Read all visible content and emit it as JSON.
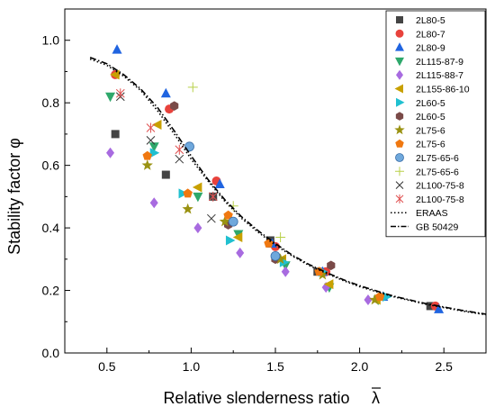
{
  "chart_data": {
    "type": "scatter",
    "xlabel": "Relative slenderness ratio",
    "xlabel_symbol": "λ",
    "ylabel": "Stability factor φ",
    "xlim": [
      0.25,
      2.75
    ],
    "ylim": [
      0.0,
      1.1
    ],
    "xticks": [
      0.5,
      1.0,
      1.5,
      2.0,
      2.5
    ],
    "xtick_labels": [
      "0.5",
      "1.0",
      "1.5",
      "2.0",
      "2.5"
    ],
    "yticks": [
      0.0,
      0.2,
      0.4,
      0.6,
      0.8,
      1.0
    ],
    "ytick_labels": [
      "0.0",
      "0.2",
      "0.4",
      "0.6",
      "0.8",
      "1.0"
    ],
    "grid": false,
    "legend_position": "top-right",
    "series": [
      {
        "name": "2L80-5",
        "marker": "square",
        "color": "#444444",
        "points": [
          [
            0.55,
            0.7
          ],
          [
            0.85,
            0.57
          ],
          [
            1.13,
            0.5
          ],
          [
            1.47,
            0.36
          ],
          [
            1.75,
            0.26
          ],
          [
            2.42,
            0.15
          ]
        ]
      },
      {
        "name": "2L80-7",
        "marker": "circle",
        "color": "#e8423c",
        "points": [
          [
            0.55,
            0.89
          ],
          [
            0.87,
            0.78
          ],
          [
            1.15,
            0.55
          ],
          [
            1.5,
            0.34
          ],
          [
            1.8,
            0.26
          ],
          [
            2.45,
            0.15
          ]
        ]
      },
      {
        "name": "2L80-9",
        "marker": "triangle-up",
        "color": "#2064e0",
        "points": [
          [
            0.56,
            0.97
          ],
          [
            0.85,
            0.83
          ],
          [
            1.17,
            0.54
          ],
          [
            1.48,
            0.35
          ],
          [
            1.78,
            0.26
          ],
          [
            2.14,
            0.18
          ],
          [
            2.47,
            0.14
          ]
        ]
      },
      {
        "name": "2L115-87-9",
        "marker": "triangle-down",
        "color": "#2ea86b",
        "points": [
          [
            0.52,
            0.82
          ],
          [
            0.78,
            0.66
          ],
          [
            1.04,
            0.5
          ],
          [
            1.28,
            0.38
          ],
          [
            1.56,
            0.28
          ],
          [
            1.82,
            0.21
          ],
          [
            2.11,
            0.17
          ]
        ]
      },
      {
        "name": "2L115-88-7",
        "marker": "diamond",
        "color": "#a86be0",
        "points": [
          [
            0.52,
            0.64
          ],
          [
            0.78,
            0.48
          ],
          [
            1.04,
            0.4
          ],
          [
            1.29,
            0.32
          ],
          [
            1.56,
            0.26
          ],
          [
            1.8,
            0.21
          ],
          [
            2.05,
            0.17
          ]
        ]
      },
      {
        "name": "2L155-86-10",
        "marker": "triangle-left",
        "color": "#c8a000",
        "points": [
          [
            0.55,
            0.89
          ],
          [
            0.8,
            0.73
          ],
          [
            1.04,
            0.53
          ],
          [
            1.28,
            0.37
          ],
          [
            1.54,
            0.3
          ],
          [
            1.82,
            0.22
          ],
          [
            2.1,
            0.17
          ]
        ]
      },
      {
        "name": "2L60-5",
        "marker": "triangle-right",
        "color": "#20c0d0",
        "points": [
          [
            0.78,
            0.64
          ],
          [
            0.95,
            0.51
          ],
          [
            1.23,
            0.36
          ],
          [
            1.55,
            0.29
          ],
          [
            1.78,
            0.26
          ],
          [
            2.16,
            0.18
          ]
        ]
      },
      {
        "name": "2L60-5",
        "marker": "hexagon",
        "color": "#7a4a48",
        "points": [
          [
            0.9,
            0.79
          ],
          [
            1.22,
            0.41
          ],
          [
            1.5,
            0.3
          ],
          [
            1.83,
            0.28
          ]
        ]
      },
      {
        "name": "2L75-6",
        "marker": "star",
        "color": "#9a9212",
        "points": [
          [
            0.74,
            0.6
          ],
          [
            0.98,
            0.46
          ],
          [
            1.2,
            0.42
          ],
          [
            1.53,
            0.3
          ],
          [
            1.78,
            0.25
          ],
          [
            2.09,
            0.17
          ]
        ]
      },
      {
        "name": "2L75-6",
        "marker": "pentagon",
        "color": "#f07810",
        "points": [
          [
            0.74,
            0.63
          ],
          [
            0.98,
            0.51
          ],
          [
            1.22,
            0.44
          ],
          [
            1.46,
            0.35
          ],
          [
            1.76,
            0.26
          ],
          [
            2.12,
            0.18
          ]
        ]
      },
      {
        "name": "2L75-65-6",
        "marker": "sphere",
        "color": "#6fa8dc",
        "points": [
          [
            0.99,
            0.66
          ],
          [
            1.25,
            0.42
          ],
          [
            1.5,
            0.31
          ]
        ]
      },
      {
        "name": "2L75-65-6",
        "marker": "plus",
        "color": "#b8d048",
        "points": [
          [
            1.01,
            0.85
          ],
          [
            1.25,
            0.47
          ],
          [
            1.53,
            0.37
          ]
        ]
      },
      {
        "name": "2L100-75-8",
        "marker": "x",
        "color": "#333333",
        "points": [
          [
            0.58,
            0.82
          ],
          [
            0.76,
            0.68
          ],
          [
            0.93,
            0.62
          ],
          [
            1.12,
            0.43
          ]
        ]
      },
      {
        "name": "2L100-75-8",
        "marker": "asterisk",
        "color": "#e05050",
        "points": [
          [
            0.58,
            0.83
          ],
          [
            0.76,
            0.72
          ],
          [
            0.93,
            0.65
          ],
          [
            1.13,
            0.5
          ]
        ]
      },
      {
        "name": "ERAAS",
        "line": "dotted",
        "color": "#000000",
        "points": [
          [
            0.4,
            0.94
          ],
          [
            0.5,
            0.92
          ],
          [
            0.6,
            0.885
          ],
          [
            0.7,
            0.84
          ],
          [
            0.8,
            0.775
          ],
          [
            0.9,
            0.7
          ],
          [
            1.0,
            0.62
          ],
          [
            1.1,
            0.55
          ],
          [
            1.2,
            0.485
          ],
          [
            1.3,
            0.43
          ],
          [
            1.4,
            0.385
          ],
          [
            1.5,
            0.345
          ],
          [
            1.6,
            0.31
          ],
          [
            1.7,
            0.28
          ],
          [
            1.8,
            0.255
          ],
          [
            1.9,
            0.232
          ],
          [
            2.0,
            0.212
          ],
          [
            2.2,
            0.18
          ],
          [
            2.4,
            0.155
          ],
          [
            2.6,
            0.135
          ],
          [
            2.75,
            0.122
          ]
        ]
      },
      {
        "name": "GB 50429",
        "line": "dashdot",
        "color": "#000000",
        "points": [
          [
            0.4,
            0.945
          ],
          [
            0.5,
            0.925
          ],
          [
            0.6,
            0.89
          ],
          [
            0.7,
            0.845
          ],
          [
            0.8,
            0.785
          ],
          [
            0.9,
            0.71
          ],
          [
            1.0,
            0.63
          ],
          [
            1.1,
            0.555
          ],
          [
            1.2,
            0.49
          ],
          [
            1.3,
            0.435
          ],
          [
            1.4,
            0.39
          ],
          [
            1.5,
            0.35
          ],
          [
            1.6,
            0.313
          ],
          [
            1.7,
            0.283
          ],
          [
            1.8,
            0.258
          ],
          [
            1.9,
            0.235
          ],
          [
            2.0,
            0.215
          ],
          [
            2.2,
            0.182
          ],
          [
            2.4,
            0.157
          ],
          [
            2.6,
            0.137
          ],
          [
            2.75,
            0.124
          ]
        ]
      }
    ]
  }
}
